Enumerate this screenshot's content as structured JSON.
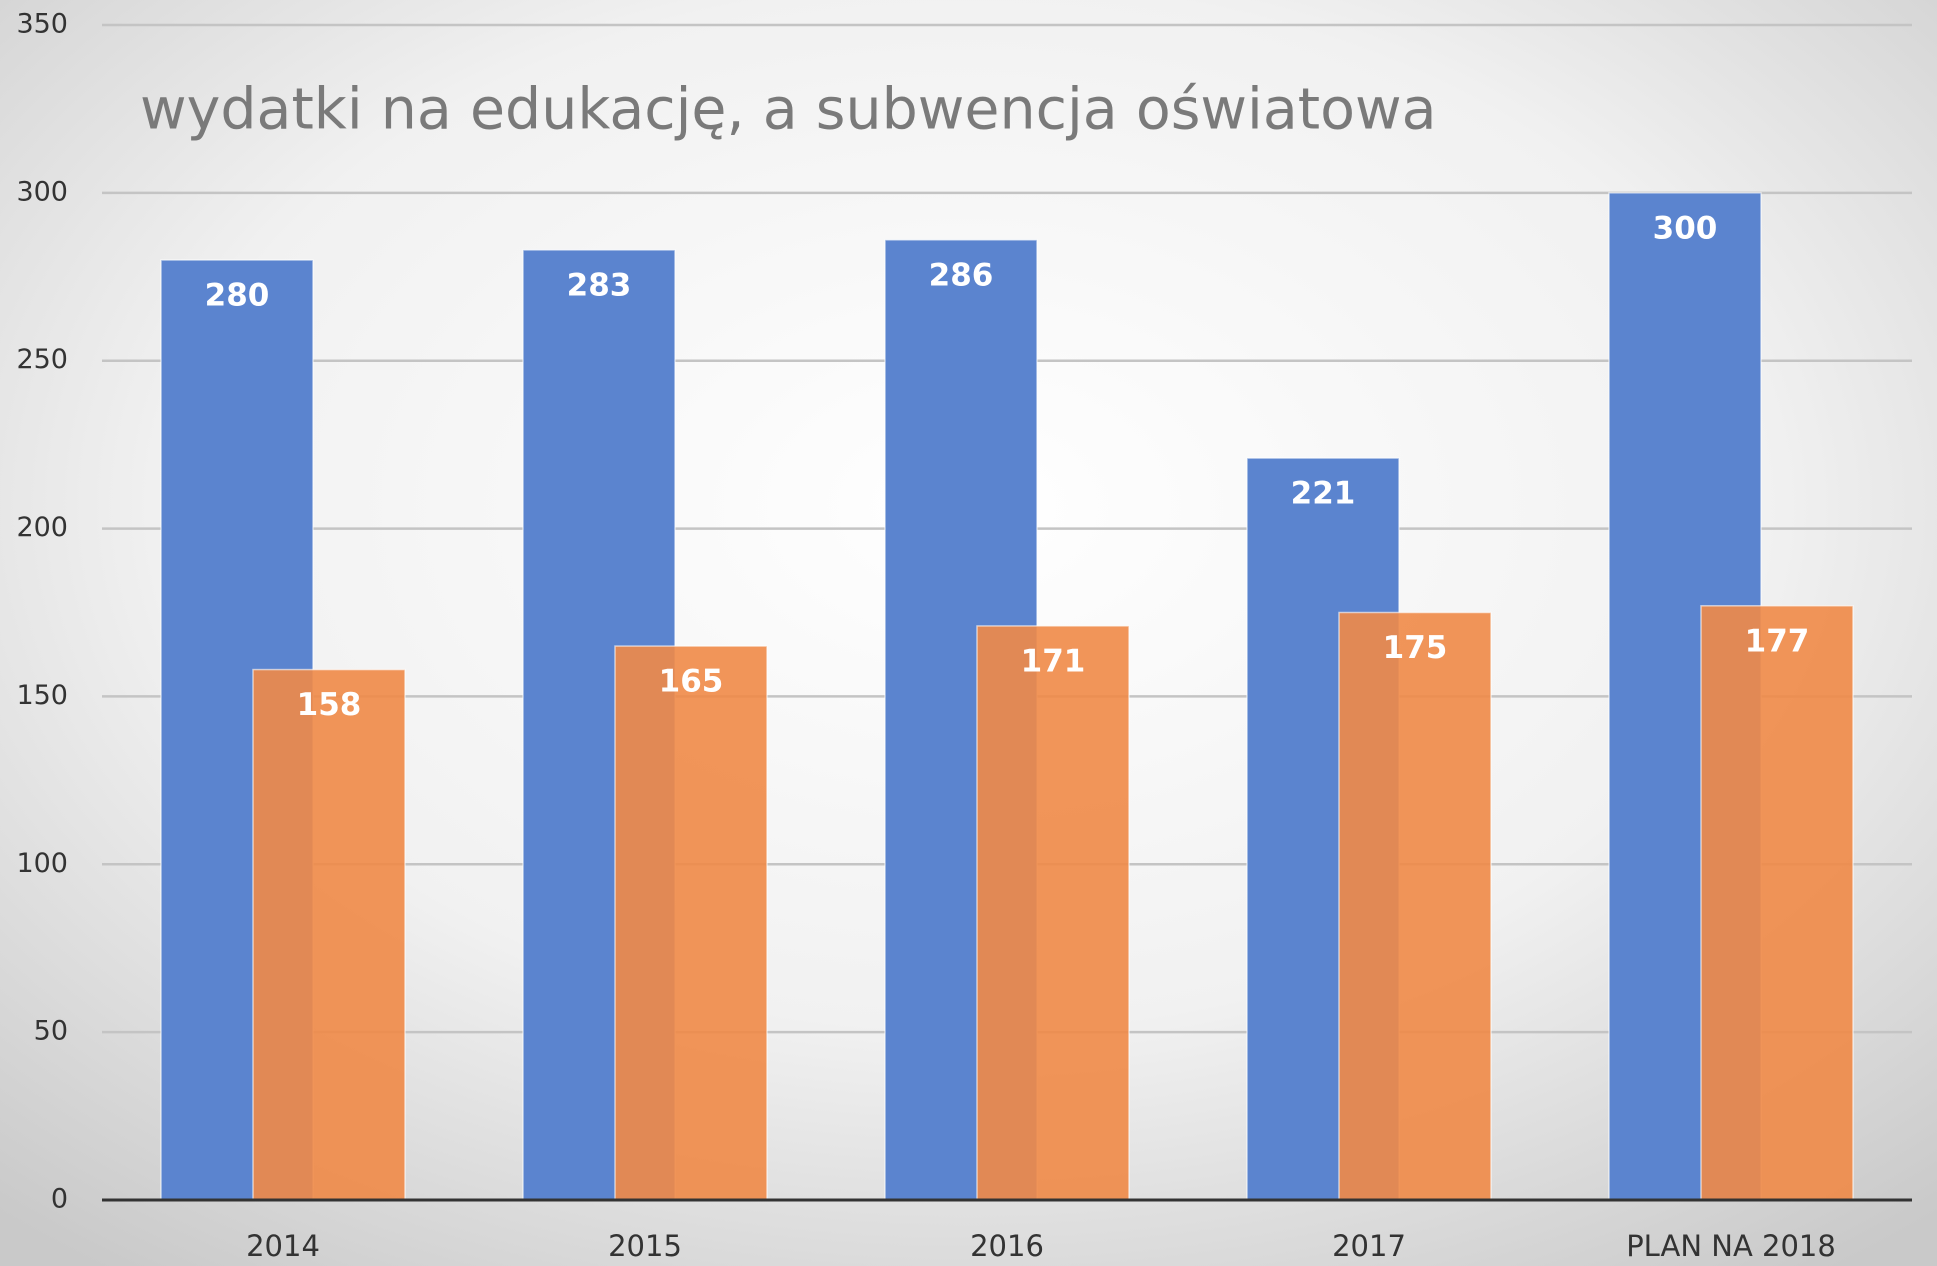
{
  "chart_data": {
    "type": "bar",
    "title": "wydatki na edukację, a subwencja oświatowa",
    "categories": [
      "2014",
      "2015",
      "2016",
      "2017",
      "PLAN NA 2018"
    ],
    "series": [
      {
        "color": "#5b84cf",
        "values": [
          280,
          283,
          286,
          221,
          300
        ]
      },
      {
        "color": "#ef8a47",
        "values": [
          158,
          165,
          171,
          175,
          177
        ]
      }
    ],
    "ylim": [
      0,
      350
    ],
    "yticks": [
      0,
      50,
      100,
      150,
      200,
      250,
      300,
      350
    ],
    "grid": true
  }
}
